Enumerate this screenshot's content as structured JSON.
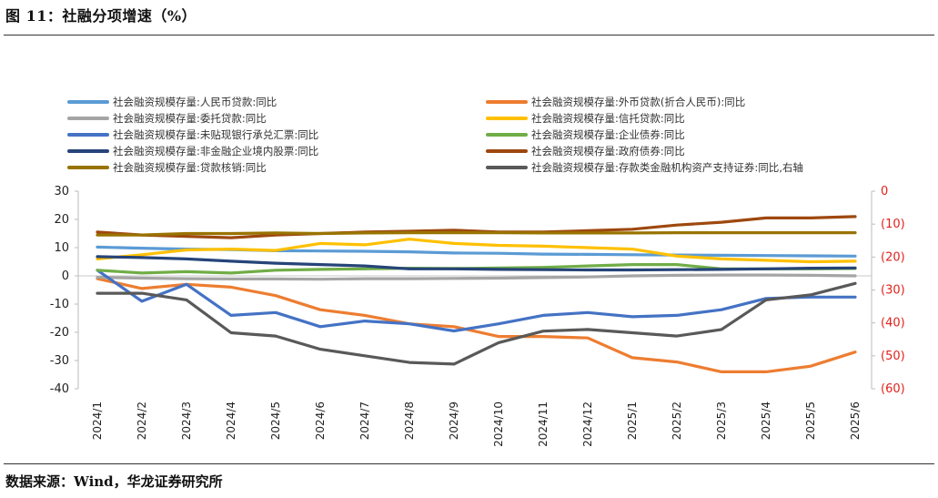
{
  "header": {
    "title": "图 11：社融分项增速（%）"
  },
  "footer": {
    "source": "数据来源：Wind，华龙证券研究所"
  },
  "chart_data": {
    "type": "line",
    "x": [
      "2024/1",
      "2024/2",
      "2024/3",
      "2024/4",
      "2024/5",
      "2024/6",
      "2024/7",
      "2024/8",
      "2024/9",
      "2024/10",
      "2024/11",
      "2024/12",
      "2025/1",
      "2025/2",
      "2025/3",
      "2025/4",
      "2025/5",
      "2025/6"
    ],
    "ylim_left": [
      -40,
      30
    ],
    "yticks_left": [
      "30",
      "20",
      "10",
      "0",
      "-10",
      "-20",
      "-30",
      "-40"
    ],
    "ylim_right": [
      -60,
      0
    ],
    "yticks_right": [
      "0",
      "(10)",
      "(20)",
      "(30)",
      "(40)",
      "(50)",
      "(60)"
    ],
    "series": [
      {
        "name": "社会融资规模存量:人民币贷款:同比",
        "color": "#5b9bd5",
        "axis": "left",
        "values": [
          10.2,
          9.8,
          9.5,
          9.3,
          8.9,
          8.8,
          8.7,
          8.5,
          8.1,
          8.0,
          7.7,
          7.6,
          7.5,
          7.4,
          7.3,
          7.2,
          7.1,
          7.0
        ]
      },
      {
        "name": "社会融资规模存量:外币贷款(折合人民币):同比",
        "color": "#ed7d31",
        "axis": "left",
        "values": [
          -1,
          -4.5,
          -3,
          -4,
          -7,
          -12,
          -14,
          -17,
          -18,
          -21.5,
          -21.5,
          -22,
          -29,
          -30.5,
          -34,
          -34,
          -32,
          -27
        ]
      },
      {
        "name": "社会融资规模存量:委托贷款:同比",
        "color": "#a5a5a5",
        "axis": "left",
        "values": [
          -0.5,
          -0.8,
          -1.0,
          -1.1,
          -1.1,
          -1.2,
          -1.0,
          -1.0,
          -0.9,
          -0.8,
          -0.6,
          -0.4,
          0,
          0.2,
          0.3,
          0.3,
          0.2,
          0
        ]
      },
      {
        "name": "社会融资规模存量:信托贷款:同比",
        "color": "#ffc000",
        "axis": "left",
        "values": [
          6.0,
          7.5,
          9.2,
          9.5,
          9.0,
          11.5,
          11.0,
          13.0,
          11.5,
          10.8,
          10.5,
          10.0,
          9.5,
          7.0,
          6.0,
          5.5,
          5.0,
          5.2
        ]
      },
      {
        "name": "社会融资规模存量:未贴现银行承兑汇票:同比",
        "color": "#4472c4",
        "axis": "left",
        "values": [
          2,
          -9,
          -3,
          -14,
          -13,
          -18,
          -16,
          -17,
          -19.5,
          -17,
          -14,
          -13,
          -14.5,
          -14,
          -12,
          -8,
          -7.5,
          -7.5
        ]
      },
      {
        "name": "社会融资规模存量:企业债券:同比",
        "color": "#70ad47",
        "axis": "left",
        "values": [
          2.0,
          1.0,
          1.5,
          1.0,
          2.0,
          2.3,
          2.5,
          2.7,
          2.6,
          2.8,
          3.0,
          3.5,
          4.0,
          4.0,
          2.5,
          2.5,
          2.5,
          2.6
        ]
      },
      {
        "name": "社会融资规模存量:非金融企业境内股票:同比",
        "color": "#264478",
        "axis": "left",
        "values": [
          6.8,
          6.5,
          6.0,
          5.2,
          4.5,
          4.0,
          3.5,
          2.5,
          2.5,
          2.3,
          2.2,
          2.1,
          2.1,
          2.2,
          2.3,
          2.5,
          2.7,
          2.8
        ]
      },
      {
        "name": "社会融资规模存量:政府债券:同比",
        "color": "#9e480e",
        "axis": "left",
        "values": [
          15.5,
          14.5,
          14.0,
          13.5,
          14.5,
          15.0,
          15.5,
          15.8,
          16.2,
          15.5,
          15.5,
          16.0,
          16.5,
          18.0,
          19.0,
          20.5,
          20.5,
          21.0
        ]
      },
      {
        "name": "社会融资规模存量:贷款核销:同比",
        "color": "#997300",
        "axis": "left",
        "values": [
          14.5,
          14.5,
          15.0,
          15.0,
          15.2,
          15.0,
          15.2,
          15.3,
          15.3,
          15.3,
          15.2,
          15.2,
          15.2,
          15.3,
          15.3,
          15.3,
          15.3,
          15.3
        ]
      },
      {
        "name": "社会融资规模存量:存款类金融机构资产支持证券:同比,右轴",
        "color": "#595959",
        "axis": "right",
        "values": [
          -31,
          -31,
          -33,
          -43,
          -44,
          -48,
          -50,
          -52,
          -52.5,
          -46,
          -42.5,
          -42,
          -43,
          -44,
          -42,
          -33,
          -31.5,
          -28
        ]
      }
    ]
  }
}
